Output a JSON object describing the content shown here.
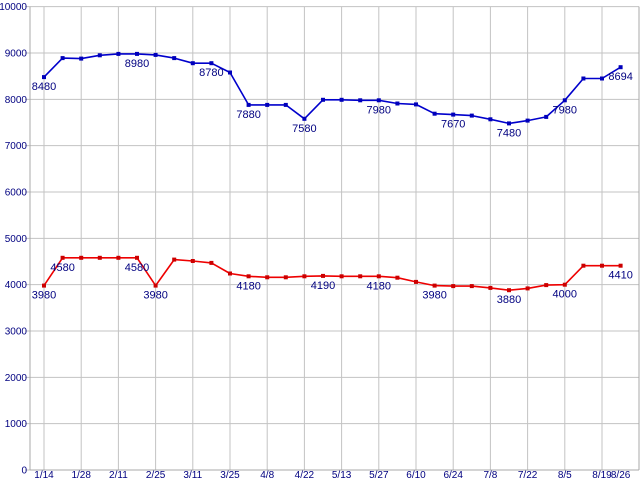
{
  "chart_data": {
    "type": "line",
    "title": "",
    "xlabel": "",
    "ylabel": "",
    "ylim": [
      0,
      10000
    ],
    "grid": true,
    "legend": "none",
    "y_ticks": [
      0,
      1000,
      2000,
      3000,
      4000,
      5000,
      6000,
      7000,
      8000,
      9000,
      10000
    ],
    "x_ticks": [
      {
        "label": "1/14",
        "point_index": 0,
        "gridline": true
      },
      {
        "label": "1/28",
        "point_index": 2,
        "gridline": true
      },
      {
        "label": "2/11",
        "point_index": 4,
        "gridline": true
      },
      {
        "label": "2/25",
        "point_index": 6,
        "gridline": true
      },
      {
        "label": "3/11",
        "point_index": 8,
        "gridline": true
      },
      {
        "label": "3/25",
        "point_index": 10,
        "gridline": true
      },
      {
        "label": "4/8",
        "point_index": 12,
        "gridline": true
      },
      {
        "label": "4/22",
        "point_index": 14,
        "gridline": true
      },
      {
        "label": "5/13",
        "point_index": 16,
        "gridline": true
      },
      {
        "label": "5/27",
        "point_index": 18,
        "gridline": true
      },
      {
        "label": "6/10",
        "point_index": 20,
        "gridline": true
      },
      {
        "label": "6/24",
        "point_index": 22,
        "gridline": true
      },
      {
        "label": "7/8",
        "point_index": 24,
        "gridline": true
      },
      {
        "label": "7/22",
        "point_index": 26,
        "gridline": true
      },
      {
        "label": "8/5",
        "point_index": 28,
        "gridline": true
      },
      {
        "label": "8/19",
        "point_index": 30,
        "gridline": true
      },
      {
        "label": "8/26",
        "point_index": 31,
        "gridline": false
      }
    ],
    "colors": {
      "background": "#ffffff",
      "gridline": "#c3c3c3",
      "axis": "#a8a8a8",
      "label_text": "#000080"
    },
    "series": [
      {
        "name": "upper-blue-series",
        "line_color": "#0000cc",
        "marker_color": "#0000bb",
        "marker": "square",
        "values": [
          8480,
          8890,
          8880,
          8950,
          8980,
          8980,
          8960,
          8890,
          8780,
          8780,
          8580,
          7880,
          7880,
          7880,
          7580,
          7990,
          7990,
          7980,
          7980,
          7910,
          7890,
          7690,
          7670,
          7650,
          7570,
          7480,
          7540,
          7620,
          7980,
          8450,
          8450,
          8694
        ],
        "point_labels": {
          "0": "8480",
          "5": "8980",
          "9": "8780",
          "11": "7880",
          "14": "7580",
          "18": "7980",
          "22": "7670",
          "25": "7480",
          "28": "7980",
          "31": "8694"
        }
      },
      {
        "name": "lower-red-series",
        "line_color": "#ee0000",
        "marker_color": "#cc0000",
        "marker": "square",
        "values": [
          3980,
          4580,
          4580,
          4580,
          4580,
          4580,
          3980,
          4540,
          4510,
          4470,
          4240,
          4180,
          4160,
          4160,
          4180,
          4190,
          4180,
          4180,
          4180,
          4150,
          4060,
          3980,
          3970,
          3970,
          3930,
          3880,
          3920,
          3990,
          4000,
          4410,
          4410,
          4410
        ],
        "point_labels": {
          "0": "3980",
          "1": "4580",
          "5": "4580",
          "6": "3980",
          "11": "4180",
          "15": "4190",
          "18": "4180",
          "21": "3980",
          "25": "3880",
          "28": "4000",
          "31": "4410"
        }
      }
    ]
  }
}
